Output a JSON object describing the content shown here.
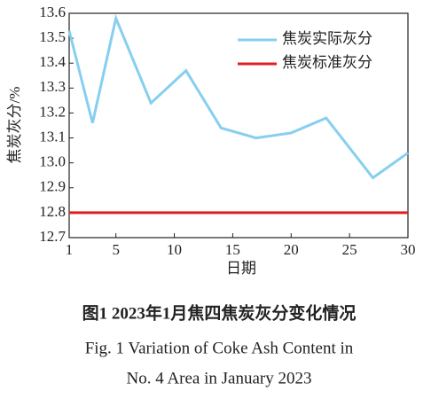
{
  "chart_data": {
    "type": "line",
    "caption_cn": "图1  2023年1月焦四焦炭灰分变化情况",
    "caption_en_1": "Fig. 1  Variation of Coke Ash Content in",
    "caption_en_2": "No. 4 Area in January 2023",
    "x_label": "日期",
    "y_label": "焦炭灰分/%",
    "x": [
      1,
      3,
      5,
      8,
      11,
      14,
      17,
      20,
      23,
      27,
      30
    ],
    "series": [
      {
        "name": "焦炭实际灰分",
        "color": "#87cfef",
        "values": [
          13.53,
          13.16,
          13.58,
          13.24,
          13.37,
          13.14,
          13.1,
          13.12,
          13.18,
          12.94,
          13.04
        ]
      },
      {
        "name": "焦炭标准灰分",
        "color": "#e02020",
        "values": [
          12.8,
          12.8,
          12.8,
          12.8,
          12.8,
          12.8,
          12.8,
          12.8,
          12.8,
          12.8,
          12.8
        ]
      }
    ],
    "xlim": [
      1,
      30
    ],
    "xticks": [
      1,
      5,
      10,
      15,
      20,
      25,
      30
    ],
    "ylim": [
      12.7,
      13.6
    ],
    "yticks": [
      {
        "value": 12.7,
        "label": "12.7"
      },
      {
        "value": 12.8,
        "label": "12.8"
      },
      {
        "value": 12.9,
        "label": "12.9"
      },
      {
        "value": 13.0,
        "label": "13.0"
      },
      {
        "value": 13.1,
        "label": "13.1"
      },
      {
        "value": 13.2,
        "label": "13.2"
      },
      {
        "value": 13.3,
        "label": "13.3"
      },
      {
        "value": 13.4,
        "label": "13.4"
      },
      {
        "value": 13.5,
        "label": "13.5"
      },
      {
        "value": 13.6,
        "label": "13.6"
      }
    ],
    "legend": "upper-right"
  }
}
